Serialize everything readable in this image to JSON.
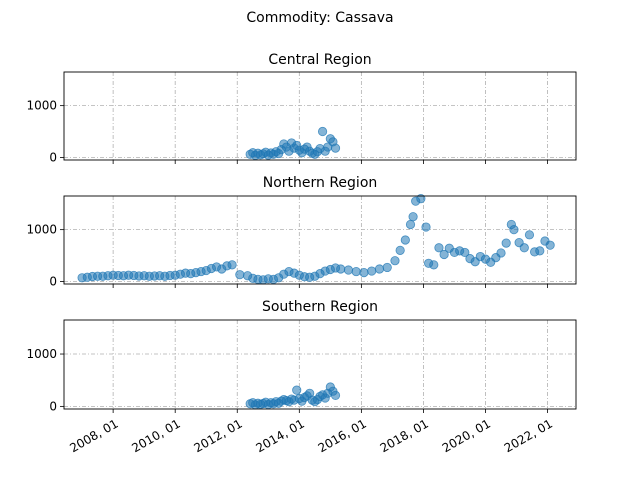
{
  "figure_title": "Commodity: Cassava",
  "chart_data": {
    "type": "scatter",
    "suptitle": "Commodity: Cassava",
    "marker_color": "#1f77b4",
    "grid": true,
    "grid_style": "dash-dot",
    "sharex": true,
    "x_ticks": [
      "2008, 01",
      "2010, 01",
      "2012, 01",
      "2014, 01",
      "2016, 01",
      "2018, 01",
      "2020, 01",
      "2022, 01"
    ],
    "xlim": [
      "2006-06",
      "2022-12"
    ],
    "ylim": [
      -50,
      1650
    ],
    "y_ticks": [
      0,
      1000
    ],
    "panels": [
      {
        "title": "Central Region",
        "points": [
          [
            "2012-06",
            60
          ],
          [
            "2012-07",
            90
          ],
          [
            "2012-08",
            40
          ],
          [
            "2012-09",
            80
          ],
          [
            "2012-10",
            50
          ],
          [
            "2012-11",
            70
          ],
          [
            "2012-12",
            100
          ],
          [
            "2013-01",
            45
          ],
          [
            "2013-02",
            85
          ],
          [
            "2013-03",
            60
          ],
          [
            "2013-04",
            110
          ],
          [
            "2013-05",
            75
          ],
          [
            "2013-06",
            150
          ],
          [
            "2013-07",
            260
          ],
          [
            "2013-08",
            200
          ],
          [
            "2013-09",
            120
          ],
          [
            "2013-10",
            280
          ],
          [
            "2013-11",
            180
          ],
          [
            "2013-12",
            230
          ],
          [
            "2014-01",
            140
          ],
          [
            "2014-02",
            90
          ],
          [
            "2014-03",
            160
          ],
          [
            "2014-04",
            200
          ],
          [
            "2014-05",
            120
          ],
          [
            "2014-06",
            80
          ],
          [
            "2014-07",
            60
          ],
          [
            "2014-08",
            110
          ],
          [
            "2014-09",
            170
          ],
          [
            "2014-10",
            500
          ],
          [
            "2014-11",
            120
          ],
          [
            "2014-12",
            200
          ],
          [
            "2015-01",
            360
          ],
          [
            "2015-02",
            300
          ],
          [
            "2015-03",
            180
          ]
        ]
      },
      {
        "title": "Northern Region",
        "points": [
          [
            "2007-01",
            70
          ],
          [
            "2007-03",
            80
          ],
          [
            "2007-05",
            95
          ],
          [
            "2007-07",
            100
          ],
          [
            "2007-09",
            100
          ],
          [
            "2007-11",
            110
          ],
          [
            "2008-01",
            120
          ],
          [
            "2008-03",
            115
          ],
          [
            "2008-05",
            110
          ],
          [
            "2008-07",
            120
          ],
          [
            "2008-09",
            115
          ],
          [
            "2008-11",
            105
          ],
          [
            "2009-01",
            110
          ],
          [
            "2009-03",
            100
          ],
          [
            "2009-05",
            105
          ],
          [
            "2009-07",
            110
          ],
          [
            "2009-09",
            100
          ],
          [
            "2009-11",
            115
          ],
          [
            "2010-01",
            120
          ],
          [
            "2010-03",
            140
          ],
          [
            "2010-05",
            160
          ],
          [
            "2010-07",
            150
          ],
          [
            "2010-09",
            170
          ],
          [
            "2010-11",
            190
          ],
          [
            "2011-01",
            210
          ],
          [
            "2011-03",
            250
          ],
          [
            "2011-05",
            280
          ],
          [
            "2011-07",
            240
          ],
          [
            "2011-09",
            300
          ],
          [
            "2011-11",
            320
          ],
          [
            "2012-02",
            130
          ],
          [
            "2012-05",
            110
          ],
          [
            "2012-07",
            60
          ],
          [
            "2012-09",
            40
          ],
          [
            "2012-11",
            30
          ],
          [
            "2013-01",
            50
          ],
          [
            "2013-03",
            40
          ],
          [
            "2013-05",
            70
          ],
          [
            "2013-07",
            140
          ],
          [
            "2013-09",
            190
          ],
          [
            "2013-11",
            160
          ],
          [
            "2014-01",
            120
          ],
          [
            "2014-03",
            90
          ],
          [
            "2014-05",
            80
          ],
          [
            "2014-07",
            100
          ],
          [
            "2014-09",
            150
          ],
          [
            "2014-11",
            200
          ],
          [
            "2015-01",
            230
          ],
          [
            "2015-03",
            260
          ],
          [
            "2015-05",
            240
          ],
          [
            "2015-08",
            220
          ],
          [
            "2015-11",
            190
          ],
          [
            "2016-02",
            170
          ],
          [
            "2016-05",
            200
          ],
          [
            "2016-08",
            240
          ],
          [
            "2016-11",
            270
          ],
          [
            "2017-02",
            400
          ],
          [
            "2017-04",
            600
          ],
          [
            "2017-06",
            800
          ],
          [
            "2017-08",
            1100
          ],
          [
            "2017-09",
            1250
          ],
          [
            "2017-10",
            1550
          ],
          [
            "2017-12",
            1600
          ],
          [
            "2018-02",
            1050
          ],
          [
            "2018-03",
            350
          ],
          [
            "2018-05",
            320
          ],
          [
            "2018-07",
            650
          ],
          [
            "2018-09",
            520
          ],
          [
            "2018-11",
            640
          ],
          [
            "2019-01",
            560
          ],
          [
            "2019-03",
            590
          ],
          [
            "2019-05",
            560
          ],
          [
            "2019-07",
            440
          ],
          [
            "2019-09",
            380
          ],
          [
            "2019-11",
            480
          ],
          [
            "2020-01",
            430
          ],
          [
            "2020-03",
            370
          ],
          [
            "2020-05",
            460
          ],
          [
            "2020-07",
            550
          ],
          [
            "2020-09",
            740
          ],
          [
            "2020-11",
            1100
          ],
          [
            "2020-12",
            1000
          ],
          [
            "2021-02",
            750
          ],
          [
            "2021-04",
            650
          ],
          [
            "2021-06",
            900
          ],
          [
            "2021-08",
            570
          ],
          [
            "2021-10",
            590
          ],
          [
            "2021-12",
            780
          ],
          [
            "2022-02",
            700
          ]
        ]
      },
      {
        "title": "Southern Region",
        "points": [
          [
            "2012-06",
            50
          ],
          [
            "2012-07",
            70
          ],
          [
            "2012-08",
            30
          ],
          [
            "2012-09",
            60
          ],
          [
            "2012-10",
            40
          ],
          [
            "2012-11",
            55
          ],
          [
            "2012-12",
            80
          ],
          [
            "2013-01",
            35
          ],
          [
            "2013-02",
            70
          ],
          [
            "2013-03",
            50
          ],
          [
            "2013-04",
            90
          ],
          [
            "2013-05",
            60
          ],
          [
            "2013-06",
            100
          ],
          [
            "2013-07",
            130
          ],
          [
            "2013-08",
            110
          ],
          [
            "2013-09",
            90
          ],
          [
            "2013-10",
            140
          ],
          [
            "2013-11",
            120
          ],
          [
            "2013-12",
            310
          ],
          [
            "2014-01",
            150
          ],
          [
            "2014-02",
            100
          ],
          [
            "2014-03",
            170
          ],
          [
            "2014-04",
            200
          ],
          [
            "2014-05",
            250
          ],
          [
            "2014-06",
            120
          ],
          [
            "2014-07",
            90
          ],
          [
            "2014-08",
            130
          ],
          [
            "2014-09",
            190
          ],
          [
            "2014-10",
            220
          ],
          [
            "2014-11",
            160
          ],
          [
            "2014-12",
            250
          ],
          [
            "2015-01",
            370
          ],
          [
            "2015-02",
            290
          ],
          [
            "2015-03",
            210
          ]
        ]
      }
    ]
  }
}
